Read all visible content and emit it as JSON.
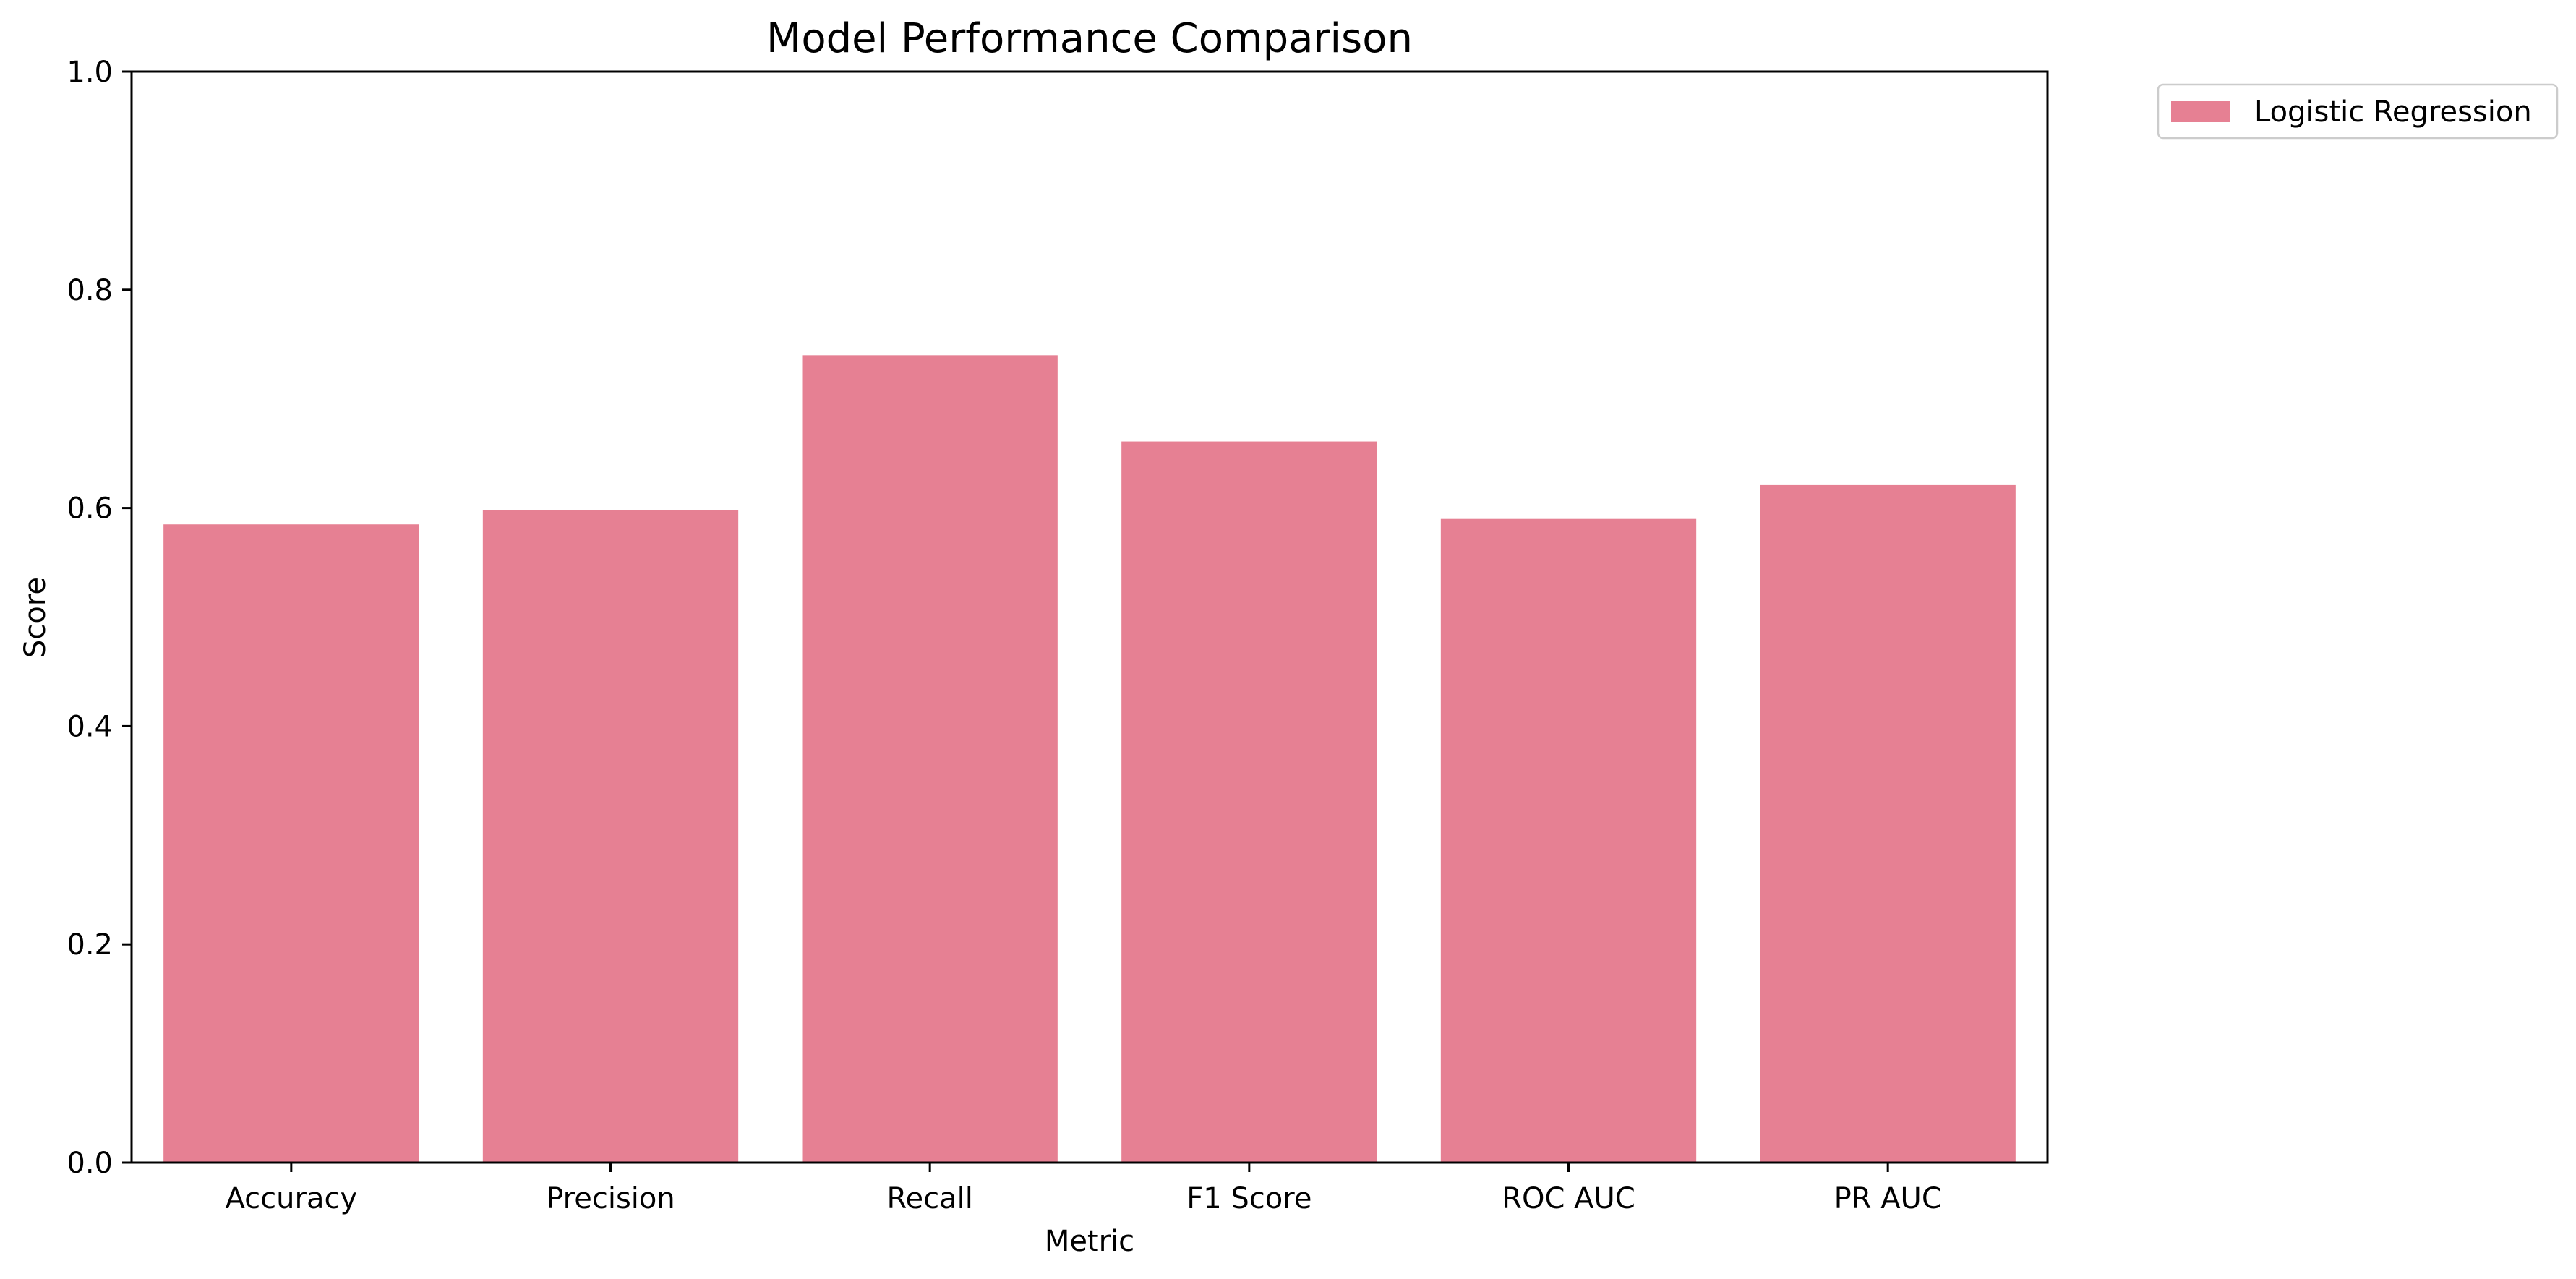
{
  "chart_data": {
    "type": "bar",
    "title": "Model Performance Comparison",
    "xlabel": "Metric",
    "ylabel": "Score",
    "categories": [
      "Accuracy",
      "Precision",
      "Recall",
      "F1 Score",
      "ROC AUC",
      "PR AUC"
    ],
    "series": [
      {
        "name": "Logistic Regression",
        "values": [
          0.585,
          0.598,
          0.74,
          0.661,
          0.59,
          0.621
        ],
        "color": "#e68093"
      }
    ],
    "ylim": [
      0,
      1.0
    ],
    "yticks": [
      0.0,
      0.2,
      0.4,
      0.6,
      0.8,
      1.0
    ],
    "ytick_labels": [
      "0.0",
      "0.2",
      "0.4",
      "0.6",
      "0.8",
      "1.0"
    ],
    "grid": false,
    "legend_position": "outside top-right"
  }
}
